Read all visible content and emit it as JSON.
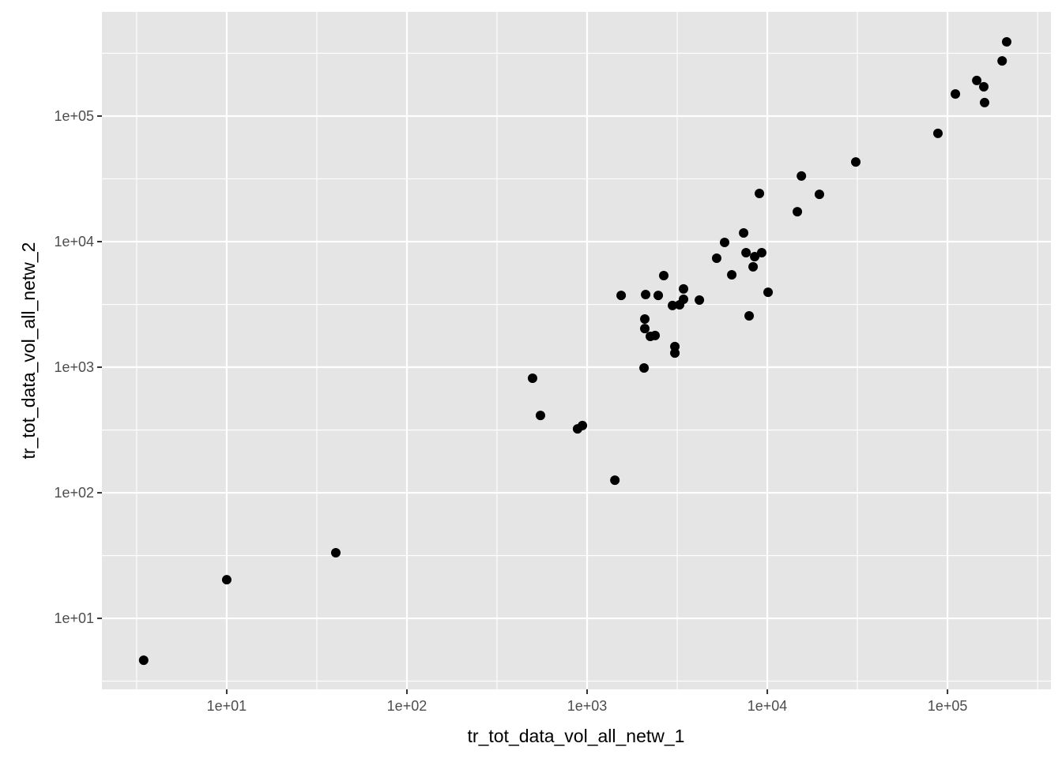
{
  "chart_data": {
    "type": "scatter",
    "xlabel": "tr_tot_data_vol_all_netw_1",
    "ylabel": "tr_tot_data_vol_all_netw_2",
    "x_scale": "log10",
    "y_scale": "log10",
    "xlim": [
      2.03,
      375000
    ],
    "ylim": [
      2.72,
      676000
    ],
    "x_ticks": [
      10,
      100,
      1000,
      10000,
      100000
    ],
    "x_tick_labels": [
      "1e+01",
      "1e+02",
      "1e+03",
      "1e+04",
      "1e+05"
    ],
    "y_ticks": [
      10,
      100,
      1000,
      10000,
      100000
    ],
    "y_tick_labels": [
      "1e+01",
      "1e+02",
      "1e+03",
      "1e+04",
      "1e+05"
    ],
    "grid": true,
    "colors": {
      "panel": "#e5e5e5",
      "grid": "#ffffff",
      "point": "#000000",
      "text": "#4d4d4d"
    },
    "points": [
      [
        3.46,
        4.64
      ],
      [
        10,
        20.3
      ],
      [
        40.3,
        33.3
      ],
      [
        498,
        817
      ],
      [
        551,
        413
      ],
      [
        885,
        323
      ],
      [
        942,
        343
      ],
      [
        1426,
        126
      ],
      [
        1545,
        3730
      ],
      [
        2070,
        986
      ],
      [
        2090,
        2030
      ],
      [
        2090,
        2420
      ],
      [
        2112,
        3790
      ],
      [
        2243,
        1760
      ],
      [
        2384,
        1790
      ],
      [
        2482,
        3730
      ],
      [
        2663,
        5370
      ],
      [
        2977,
        3100
      ],
      [
        3069,
        1460
      ],
      [
        3069,
        1297
      ],
      [
        3260,
        3140
      ],
      [
        3428,
        4200
      ],
      [
        3428,
        3475
      ],
      [
        4198,
        3425
      ],
      [
        5236,
        7380
      ],
      [
        5794,
        9860
      ],
      [
        6350,
        5440
      ],
      [
        7390,
        11720
      ],
      [
        7620,
        8160
      ],
      [
        7930,
        2564
      ],
      [
        8340,
        6300
      ],
      [
        8510,
        7600
      ],
      [
        9040,
        24200
      ],
      [
        9310,
        8160
      ],
      [
        10100,
        3950
      ],
      [
        14680,
        17300
      ],
      [
        15460,
        33300
      ],
      [
        19460,
        23800
      ],
      [
        30970,
        43100
      ],
      [
        88500,
        72800
      ],
      [
        110600,
        150000
      ],
      [
        145300,
        192000
      ],
      [
        159000,
        171000
      ],
      [
        160600,
        128000
      ],
      [
        201000,
        275000
      ],
      [
        213000,
        390000
      ]
    ]
  }
}
